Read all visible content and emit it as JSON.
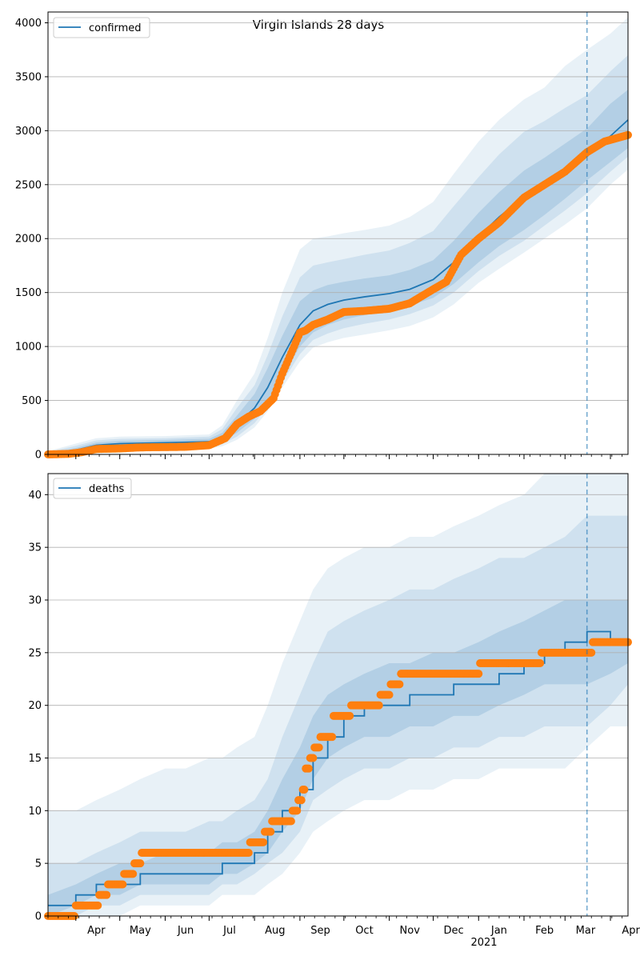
{
  "title": "Virgin Islands 28 days",
  "x_axis": {
    "tick_labels": [
      "Apr",
      "May",
      "Jun",
      "Jul",
      "Aug",
      "Sep",
      "Oct",
      "Nov",
      "Dec",
      "Jan",
      "Feb",
      "Mar",
      "Apr"
    ],
    "year_label": "2021",
    "range": [
      "2020-03-13",
      "2021-04-13"
    ],
    "forecast_date": "2021-03-16"
  },
  "colors": {
    "model": "#1f77b4",
    "observed": "#ff7f0e",
    "grid": "#b0b0b0"
  },
  "chart_data": [
    {
      "type": "line",
      "legend": "confirmed",
      "legend_position": "top-left",
      "grid": "horizontal",
      "ylim": [
        0,
        4100
      ],
      "yticks": [
        0,
        500,
        1000,
        1500,
        2000,
        2500,
        3000,
        3500,
        4000
      ],
      "model": {
        "x": [
          "2020-03-13",
          "2020-04-01",
          "2020-04-15",
          "2020-05-01",
          "2020-06-01",
          "2020-07-01",
          "2020-07-10",
          "2020-07-20",
          "2020-08-01",
          "2020-08-10",
          "2020-08-20",
          "2020-09-01",
          "2020-09-10",
          "2020-09-20",
          "2020-10-01",
          "2020-10-15",
          "2020-11-01",
          "2020-11-15",
          "2020-12-01",
          "2020-12-15",
          "2021-01-01",
          "2021-01-15",
          "2021-02-01",
          "2021-02-15",
          "2021-03-01",
          "2021-03-16",
          "2021-04-01",
          "2021-04-13"
        ],
        "median": [
          5,
          40,
          85,
          100,
          108,
          118,
          160,
          280,
          430,
          620,
          900,
          1200,
          1330,
          1390,
          1430,
          1460,
          1490,
          1530,
          1620,
          1780,
          2020,
          2200,
          2390,
          2530,
          2650,
          2790,
          2950,
          3100
        ],
        "bands": [
          {
            "lower": [
              0,
              20,
              50,
              70,
              80,
              90,
              120,
              200,
              330,
              480,
              720,
              1000,
              1130,
              1200,
              1250,
              1290,
              1330,
              1380,
              1450,
              1580,
              1780,
              1930,
              2080,
              2220,
              2370,
              2540,
              2710,
              2840
            ],
            "upper": [
              10,
              60,
              110,
              125,
              133,
              145,
              200,
              360,
              560,
              800,
              1100,
              1420,
              1520,
              1570,
              1600,
              1630,
              1660,
              1710,
              1800,
              1980,
              2240,
              2430,
              2630,
              2750,
              2880,
              3020,
              3250,
              3380
            ]
          },
          {
            "lower": [
              0,
              10,
              35,
              55,
              63,
              70,
              95,
              165,
              290,
              440,
              670,
              930,
              1060,
              1120,
              1170,
              1210,
              1250,
              1300,
              1380,
              1500,
              1700,
              1840,
              1980,
              2120,
              2260,
              2420,
              2620,
              2760
            ],
            "upper": [
              20,
              80,
              130,
              145,
              150,
              165,
              235,
              430,
              640,
              920,
              1280,
              1640,
              1750,
              1780,
              1810,
              1850,
              1890,
              1960,
              2070,
              2300,
              2570,
              2780,
              2990,
              3090,
              3210,
              3330,
              3550,
              3700
            ]
          },
          {
            "lower": [
              0,
              5,
              25,
              40,
              48,
              55,
              75,
              135,
              250,
              400,
              620,
              860,
              990,
              1040,
              1080,
              1110,
              1150,
              1190,
              1270,
              1390,
              1590,
              1720,
              1870,
              2000,
              2130,
              2280,
              2500,
              2640
            ],
            "upper": [
              30,
              100,
              150,
              165,
              170,
              185,
              270,
              500,
              750,
              1080,
              1500,
              1900,
              2000,
              2020,
              2050,
              2080,
              2120,
              2200,
              2340,
              2600,
              2900,
              3100,
              3290,
              3400,
              3600,
              3750,
              3900,
              4050
            ]
          }
        ]
      },
      "observed": {
        "x": [
          "2020-03-13",
          "2020-03-27",
          "2020-04-05",
          "2020-04-15",
          "2020-05-01",
          "2020-05-15",
          "2020-06-15",
          "2020-07-01",
          "2020-07-12",
          "2020-07-20",
          "2020-07-28",
          "2020-08-05",
          "2020-08-14",
          "2020-08-20",
          "2020-08-28",
          "2020-09-01",
          "2020-09-05",
          "2020-09-10",
          "2020-09-20",
          "2020-10-01",
          "2020-10-15",
          "2020-11-01",
          "2020-11-15",
          "2020-12-01",
          "2020-12-10",
          "2020-12-20",
          "2021-01-01",
          "2021-01-15",
          "2021-02-01",
          "2021-02-15",
          "2021-03-01",
          "2021-03-16",
          "2021-03-28",
          "2021-04-13"
        ],
        "values": [
          0,
          5,
          20,
          50,
          55,
          65,
          70,
          85,
          150,
          280,
          350,
          400,
          520,
          750,
          1000,
          1130,
          1150,
          1200,
          1250,
          1320,
          1330,
          1350,
          1400,
          1530,
          1600,
          1850,
          2000,
          2150,
          2380,
          2500,
          2620,
          2800,
          2900,
          2960
        ]
      }
    },
    {
      "type": "line",
      "legend": "deaths",
      "legend_position": "top-left",
      "grid": "horizontal",
      "ylim": [
        0,
        42
      ],
      "yticks": [
        0,
        5,
        10,
        15,
        20,
        25,
        30,
        35,
        40
      ],
      "model": {
        "x": [
          "2020-03-13",
          "2020-04-01",
          "2020-04-15",
          "2020-05-01",
          "2020-05-15",
          "2020-06-01",
          "2020-06-15",
          "2020-07-01",
          "2020-07-10",
          "2020-07-20",
          "2020-08-01",
          "2020-08-10",
          "2020-08-20",
          "2020-09-01",
          "2020-09-10",
          "2020-09-20",
          "2020-10-01",
          "2020-10-15",
          "2020-11-01",
          "2020-11-15",
          "2020-12-01",
          "2020-12-15",
          "2021-01-01",
          "2021-01-15",
          "2021-02-01",
          "2021-02-15",
          "2021-03-01",
          "2021-03-16",
          "2021-04-01",
          "2021-04-13"
        ],
        "median": [
          1,
          2,
          3,
          3,
          4,
          4,
          4,
          4,
          5,
          5,
          6,
          8,
          10,
          12,
          15,
          17,
          19,
          20,
          20,
          21,
          21,
          22,
          22,
          23,
          24,
          25,
          26,
          27,
          26,
          26
        ],
        "bands": [
          {
            "lower": [
              0,
              1,
              2,
              2,
              3,
              3,
              3,
              3,
              4,
              4,
              5,
              6,
              8,
              10,
              13,
              15,
              16,
              17,
              17,
              18,
              18,
              19,
              19,
              20,
              21,
              22,
              22,
              22,
              23,
              24
            ],
            "upper": [
              2,
              3,
              4,
              5,
              5,
              6,
              6,
              6,
              7,
              7,
              8,
              10,
              13,
              16,
              19,
              21,
              22,
              23,
              24,
              24,
              25,
              25,
              26,
              27,
              28,
              29,
              30,
              30,
              30,
              30
            ]
          },
          {
            "lower": [
              0,
              0,
              1,
              1,
              2,
              2,
              2,
              2,
              3,
              3,
              4,
              5,
              6,
              8,
              11,
              12,
              13,
              14,
              14,
              15,
              15,
              16,
              16,
              17,
              17,
              18,
              18,
              18,
              20,
              22
            ],
            "upper": [
              5,
              5,
              6,
              7,
              8,
              8,
              8,
              9,
              9,
              10,
              11,
              13,
              17,
              21,
              24,
              27,
              28,
              29,
              30,
              31,
              31,
              32,
              33,
              34,
              34,
              35,
              36,
              38,
              38,
              38
            ]
          },
          {
            "lower": [
              0,
              0,
              0,
              0,
              1,
              1,
              1,
              1,
              2,
              2,
              2,
              3,
              4,
              6,
              8,
              9,
              10,
              11,
              11,
              12,
              12,
              13,
              13,
              14,
              14,
              14,
              14,
              16,
              18,
              18
            ],
            "upper": [
              10,
              10,
              11,
              12,
              13,
              14,
              14,
              15,
              15,
              16,
              17,
              20,
              24,
              28,
              31,
              33,
              34,
              35,
              35,
              36,
              36,
              37,
              38,
              39,
              40,
              42,
              42,
              42,
              42,
              42
            ]
          }
        ]
      },
      "observed": {
        "x": [
          "2020-03-13",
          "2020-03-31",
          "2020-04-02",
          "2020-04-15",
          "2020-04-18",
          "2020-04-27",
          "2020-05-10",
          "2020-05-12",
          "2020-05-20",
          "2020-06-01",
          "2020-07-01",
          "2020-07-15",
          "2020-07-25",
          "2020-08-01",
          "2020-08-05",
          "2020-08-10",
          "2020-08-16",
          "2020-08-20",
          "2020-08-24",
          "2020-08-29",
          "2020-09-01",
          "2020-09-04",
          "2020-09-06",
          "2020-09-10",
          "2020-09-12",
          "2020-09-17",
          "2020-10-01",
          "2020-10-10",
          "2020-10-15",
          "2020-10-20",
          "2020-11-01",
          "2020-11-03",
          "2020-11-15",
          "2020-12-01",
          "2020-12-15",
          "2021-01-01",
          "2021-01-02",
          "2021-02-01",
          "2021-02-10",
          "2021-02-15",
          "2021-03-01",
          "2021-03-16",
          "2021-03-24",
          "2021-04-13"
        ],
        "values": [
          0,
          0,
          1,
          1,
          2,
          3,
          4,
          5,
          6,
          6,
          6,
          6,
          6,
          7,
          7,
          8,
          9,
          9,
          9,
          10,
          11,
          12,
          14,
          15,
          16,
          17,
          19,
          20,
          20,
          20,
          21,
          22,
          23,
          23,
          23,
          23,
          24,
          24,
          24,
          25,
          25,
          25,
          26,
          26
        ]
      }
    }
  ]
}
